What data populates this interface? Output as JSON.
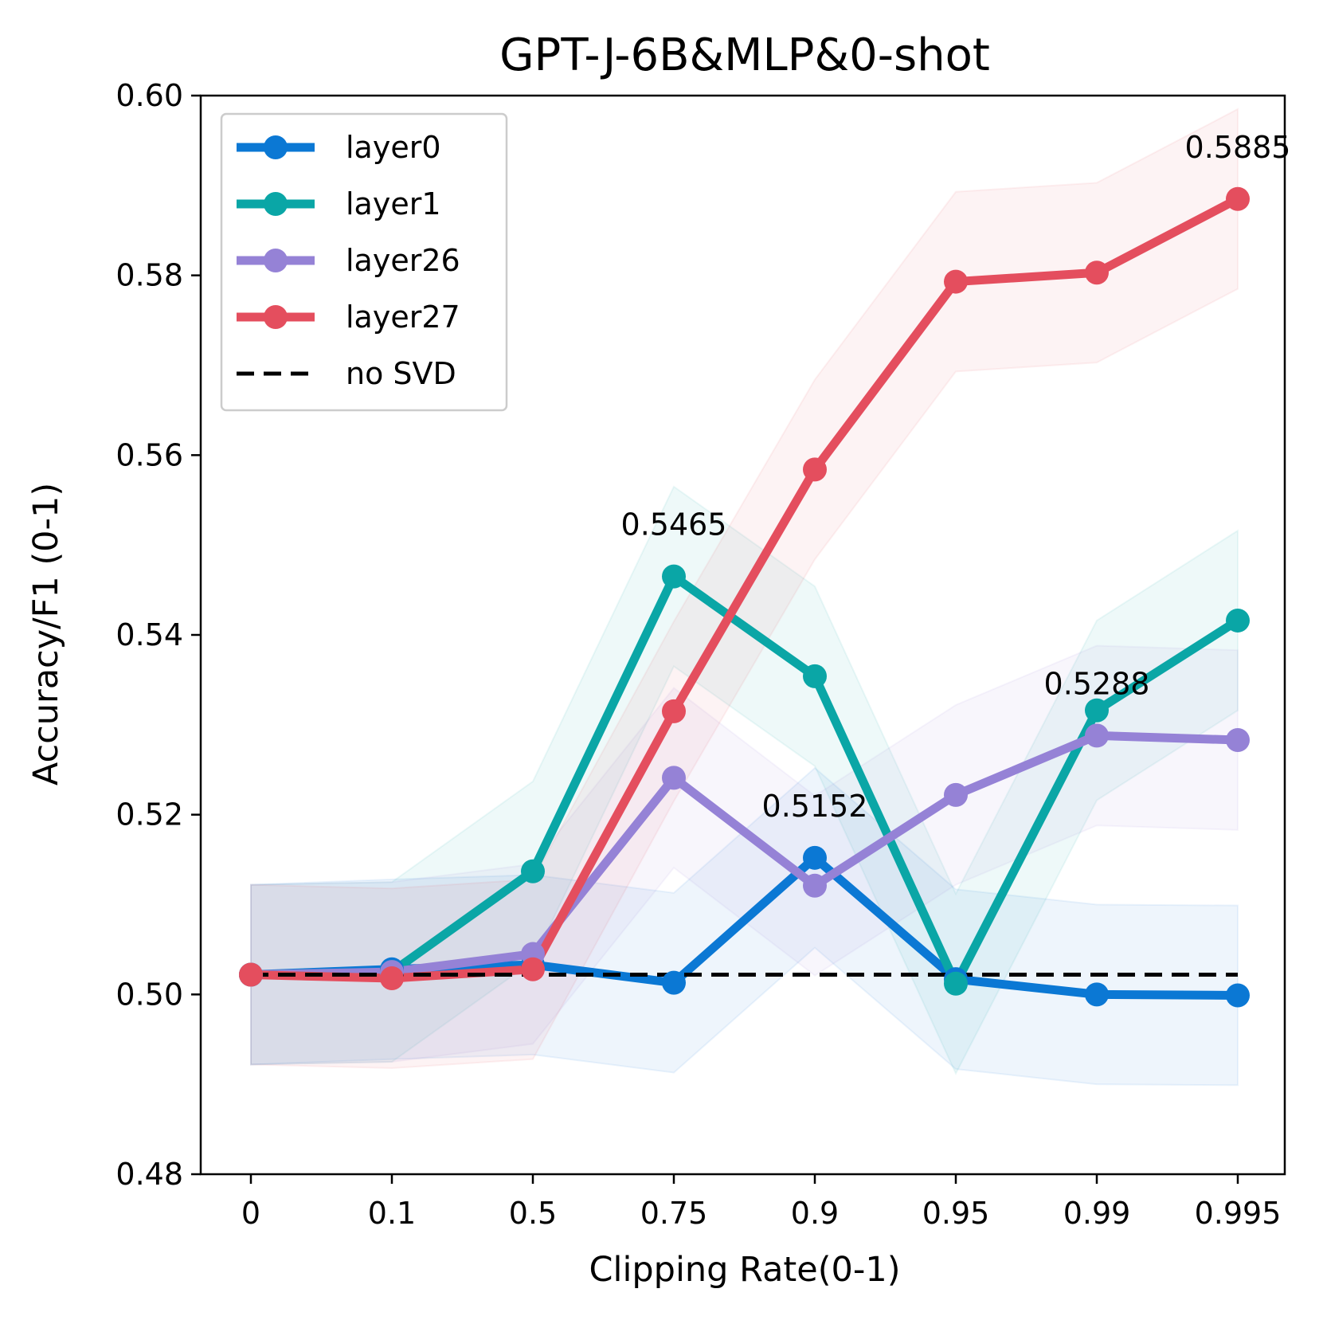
{
  "chart_data": {
    "type": "line",
    "title": "GPT-J-6B&MLP&0-shot",
    "xlabel": "Clipping Rate(0-1)",
    "ylabel": "Accuracy/F1 (0-1)",
    "categories": [
      "0",
      "0.1",
      "0.5",
      "0.75",
      "0.9",
      "0.95",
      "0.99",
      "0.995"
    ],
    "ylim": [
      0.48,
      0.6
    ],
    "yticks": [
      "0.48",
      "0.50",
      "0.52",
      "0.54",
      "0.56",
      "0.58",
      "0.60"
    ],
    "ytick_values": [
      0.48,
      0.5,
      0.52,
      0.54,
      0.56,
      0.58,
      0.6
    ],
    "grid": false,
    "legend_position": "top-left",
    "band_halfwidth": 0.01,
    "series": [
      {
        "name": "layer0",
        "color": "#0b78d4",
        "values": [
          0.5022,
          0.5028,
          0.5033,
          0.5013,
          0.5152,
          0.5017,
          0.5,
          0.4999
        ]
      },
      {
        "name": "layer1",
        "color": "#0aa6a6",
        "values": [
          0.5022,
          0.5025,
          0.5137,
          0.5465,
          0.5354,
          0.5012,
          0.5316,
          0.5416
        ]
      },
      {
        "name": "layer26",
        "color": "#9582d6",
        "values": [
          0.5022,
          0.5025,
          0.5045,
          0.5241,
          0.5121,
          0.5222,
          0.5288,
          0.5283
        ]
      },
      {
        "name": "layer27",
        "color": "#e44e5e",
        "values": [
          0.5022,
          0.5018,
          0.5028,
          0.5315,
          0.5584,
          0.5793,
          0.5803,
          0.5885
        ]
      }
    ],
    "baseline": {
      "name": "no SVD",
      "value": 0.5022,
      "color": "#000000"
    },
    "annotations": [
      {
        "text": "0.5465",
        "x_index": 3,
        "y": 0.5465
      },
      {
        "text": "0.5152",
        "x_index": 4,
        "y": 0.5152
      },
      {
        "text": "0.5288",
        "x_index": 6,
        "y": 0.5288
      },
      {
        "text": "0.5885",
        "x_index": 7,
        "y": 0.5885
      }
    ]
  }
}
